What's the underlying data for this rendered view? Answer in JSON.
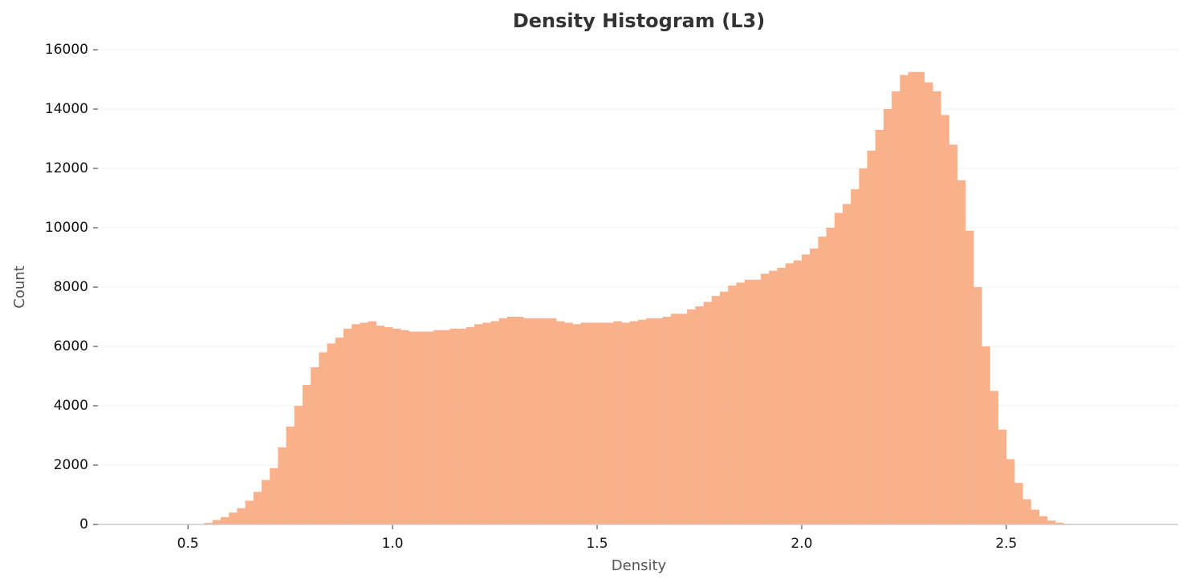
{
  "chart_data": {
    "type": "histogram",
    "title": "Density Histogram (L3)",
    "xlabel": "Density",
    "ylabel": "Count",
    "color": "#f8b18b",
    "grid": true,
    "xlim": [
      0.28,
      2.92
    ],
    "ylim": [
      0,
      16000
    ],
    "xticks": [
      0.5,
      {
        "value": 1,
        "label": "1.0"
      },
      1.5,
      {
        "value": 2,
        "label": "2.0"
      },
      2.5
    ],
    "yticks": [
      0,
      2000,
      4000,
      6000,
      8000,
      10000,
      12000,
      14000,
      16000
    ],
    "bins": [
      0.4,
      0.42,
      0.44,
      0.46,
      0.48,
      0.5,
      0.52,
      0.54,
      0.56,
      0.58,
      0.6,
      0.62,
      0.64,
      0.66,
      0.68,
      0.7,
      0.72,
      0.74,
      0.76,
      0.78,
      0.8,
      0.82,
      0.84,
      0.86,
      0.88,
      0.9,
      0.92,
      0.94,
      0.96,
      0.98,
      1,
      1.02,
      1.04,
      1.06,
      1.08,
      1.1,
      1.12,
      1.14,
      1.16,
      1.18,
      1.2,
      1.22,
      1.24,
      1.26,
      1.28,
      1.3,
      1.32,
      1.34,
      1.36,
      1.38,
      1.4,
      1.42,
      1.44,
      1.46,
      1.48,
      1.5,
      1.52,
      1.54,
      1.56,
      1.58,
      1.6,
      1.62,
      1.64,
      1.66,
      1.68,
      1.7,
      1.72,
      1.74,
      1.76,
      1.78,
      1.8,
      1.82,
      1.84,
      1.86,
      1.88,
      1.9,
      1.92,
      1.94,
      1.96,
      1.98,
      2,
      2.02,
      2.04,
      2.06,
      2.08,
      2.1,
      2.12,
      2.14,
      2.16,
      2.18,
      2.2,
      2.22,
      2.24,
      2.26,
      2.28,
      2.3,
      2.32,
      2.34,
      2.36,
      2.38,
      2.4,
      2.42,
      2.44,
      2.46,
      2.48,
      2.5,
      2.52,
      2.54,
      2.56,
      2.58,
      2.6,
      2.62,
      2.64,
      2.66,
      2.68,
      2.7,
      2.72,
      2.74,
      2.76,
      2.78,
      2.8
    ],
    "values": [
      0,
      0,
      0,
      0,
      0,
      0,
      0,
      50,
      150,
      250,
      400,
      550,
      800,
      1100,
      1500,
      1900,
      2600,
      3300,
      4000,
      4700,
      5300,
      5800,
      6100,
      6300,
      6600,
      6750,
      6800,
      6850,
      6700,
      6650,
      6600,
      6550,
      6500,
      6500,
      6500,
      6550,
      6550,
      6600,
      6600,
      6650,
      6750,
      6800,
      6850,
      6950,
      7000,
      7000,
      6950,
      6950,
      6950,
      6950,
      6850,
      6800,
      6750,
      6800,
      6800,
      6800,
      6800,
      6850,
      6800,
      6850,
      6900,
      6950,
      6950,
      7000,
      7100,
      7100,
      7250,
      7350,
      7500,
      7700,
      7850,
      8050,
      8150,
      8250,
      8250,
      8450,
      8550,
      8650,
      8800,
      8900,
      9100,
      9300,
      9700,
      10000,
      10500,
      10800,
      11300,
      12000,
      12600,
      13300,
      14000,
      14600,
      15150,
      15250,
      15250,
      14900,
      14600,
      13800,
      12800,
      11600,
      9900,
      8000,
      6000,
      4500,
      3200,
      2200,
      1400,
      850,
      500,
      280,
      130,
      60,
      25,
      10,
      0,
      0,
      0,
      0,
      0,
      0
    ]
  }
}
